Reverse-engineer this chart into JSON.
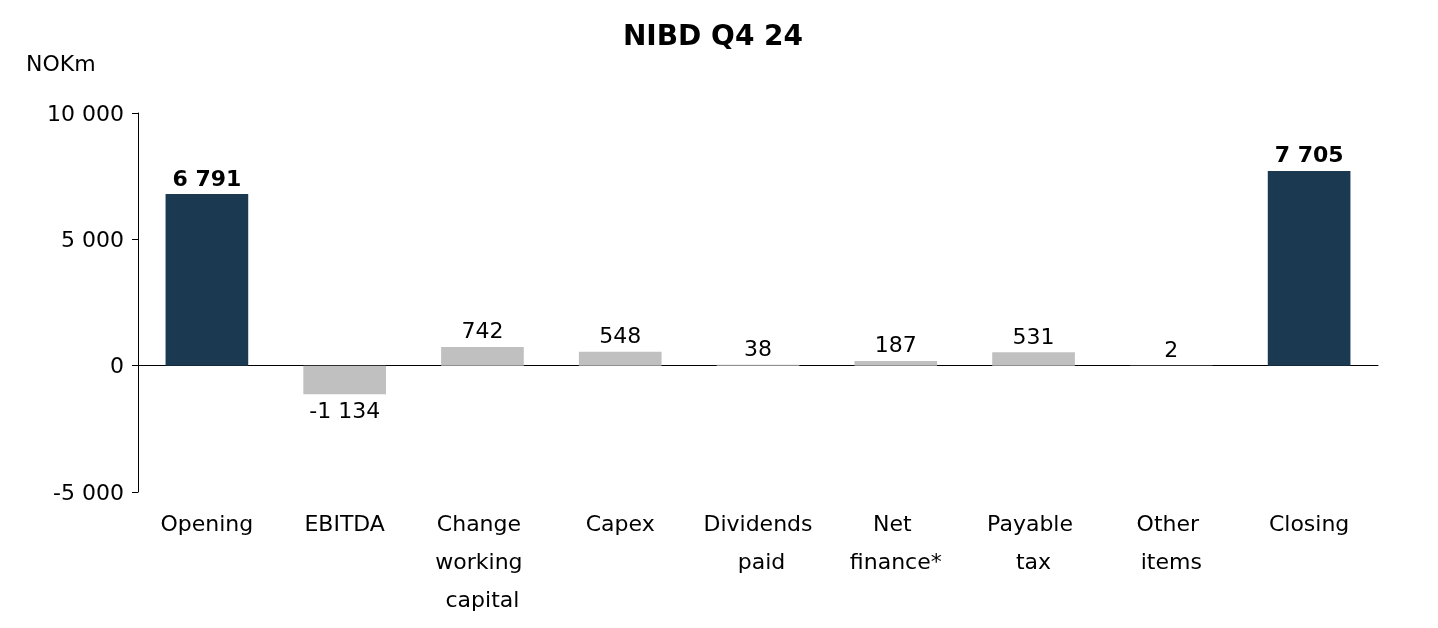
{
  "chart_data": {
    "type": "bar",
    "title": "NIBD Q4 24",
    "ylabel": "NOKm",
    "categories": [
      "Opening",
      "EBITDA",
      "Change working capital",
      "Capex",
      "Dividends paid",
      "Net finance*",
      "Payable tax",
      "Other items",
      "Closing"
    ],
    "values": [
      6791,
      -1134,
      742,
      548,
      38,
      187,
      531,
      2,
      7705
    ],
    "colors": [
      "#1b3a52",
      "#c0c0c0",
      "#c0c0c0",
      "#c0c0c0",
      "#c0c0c0",
      "#c0c0c0",
      "#c0c0c0",
      "#c0c0c0",
      "#1b3a52"
    ],
    "value_labels": [
      "6 791",
      "-1 134",
      "742",
      "548",
      "38",
      "187",
      "531",
      "2",
      "7 705"
    ],
    "ylim": [
      -5000,
      10000
    ],
    "yticks": [
      {
        "value": -5000,
        "label": "-5 000"
      },
      {
        "value": 0,
        "label": "0"
      },
      {
        "value": 5000,
        "label": "5 000"
      },
      {
        "value": 10000,
        "label": "10 000"
      }
    ]
  }
}
